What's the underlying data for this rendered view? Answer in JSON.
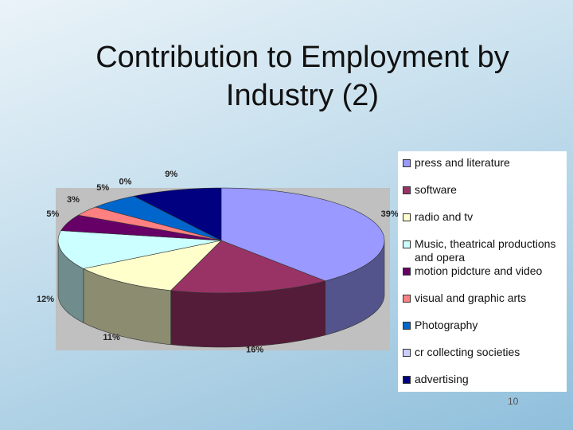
{
  "chart_data": {
    "type": "pie3d",
    "title": "Contribution to Employment by Industry (2)",
    "categories": [
      "press and literature",
      "software",
      "radio and tv",
      "Music, theatrical productions and opera",
      "motion pidcture and video",
      "visual and graphic arts",
      "Photography",
      "cr collecting societies",
      "advertising"
    ],
    "values": [
      39,
      16,
      11,
      12,
      5,
      3,
      5,
      0,
      9
    ],
    "value_labels": [
      "39%",
      "16%",
      "11%",
      "12%",
      "5%",
      "3%",
      "5%",
      "0%",
      "9%"
    ],
    "colors": [
      "#9999ff",
      "#993366",
      "#ffffcc",
      "#ccffff",
      "#660066",
      "#ff8080",
      "#0066cc",
      "#ccccff",
      "#000080"
    ],
    "legend": "right"
  },
  "slide_number": "10"
}
